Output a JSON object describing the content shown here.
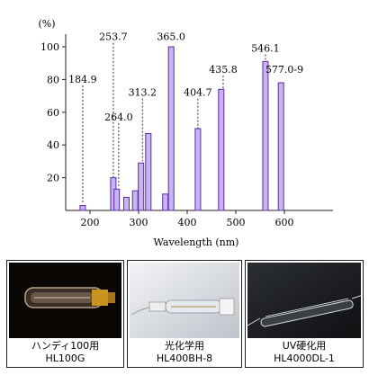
{
  "chart_data": {
    "type": "bar",
    "ylabel": "(%)",
    "xlabel": "Wavelength (nm)",
    "xlim": [
      150,
      700
    ],
    "ylim": [
      0,
      100
    ],
    "xticks": [
      200,
      300,
      400,
      500,
      600
    ],
    "yticks": [
      20,
      40,
      60,
      80,
      100
    ],
    "grid": false,
    "bar_color": "#c9b3f2",
    "bar_edge": "#5b2ca3",
    "bars": [
      {
        "x": 185,
        "value": 3
      },
      {
        "x": 248,
        "value": 20
      },
      {
        "x": 255,
        "value": 13
      },
      {
        "x": 275,
        "value": 8
      },
      {
        "x": 293,
        "value": 12
      },
      {
        "x": 305,
        "value": 29
      },
      {
        "x": 320,
        "value": 47
      },
      {
        "x": 355,
        "value": 10
      },
      {
        "x": 367,
        "value": 100
      },
      {
        "x": 422,
        "value": 50
      },
      {
        "x": 470,
        "value": 74
      },
      {
        "x": 561,
        "value": 91
      },
      {
        "x": 593,
        "value": 78
      }
    ],
    "annotations": [
      {
        "text": "184.9",
        "x": 185,
        "y": 78,
        "line_to": 5
      },
      {
        "text": "253.7",
        "x": 248,
        "y": 104,
        "line_to": 20
      },
      {
        "text": "264.0",
        "x": 259,
        "y": 55,
        "line_to": 14
      },
      {
        "text": "313.2",
        "x": 308,
        "y": 70,
        "line_to": 30
      },
      {
        "text": "365.0",
        "x": 367,
        "y": 104,
        "line_to": 100
      },
      {
        "text": "404.7",
        "x": 422,
        "y": 70,
        "line_to": 50
      },
      {
        "text": "435.8",
        "x": 474,
        "y": 84,
        "line_to": 74
      },
      {
        "text": "546.1",
        "x": 561,
        "y": 97,
        "line_to": 92
      },
      {
        "text": "577.0-9",
        "x": 600,
        "y": 84,
        "line_to": 80
      }
    ]
  },
  "products": [
    {
      "name": "ハンディ100用",
      "model": "HL100G",
      "photo_bg": "#0b0705"
    },
    {
      "name": "光化学用",
      "model": "HL400BH-8",
      "photo_bg": "#d9dde2"
    },
    {
      "name": "UV硬化用",
      "model": "HL4000DL-1",
      "photo_bg": "#1b1d20"
    }
  ]
}
